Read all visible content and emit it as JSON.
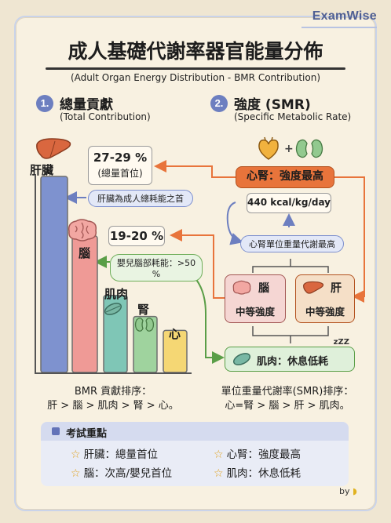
{
  "brand": "ExamWise",
  "title": "成人基礎代謝率器官能量分佈",
  "subtitle": "(Adult Organ Energy Distribution - BMR Contribution)",
  "section1": {
    "number": "1.",
    "title": "總量貢獻",
    "subtitle": "(Total Contribution)",
    "liver_callout_value": "27-29 %",
    "liver_callout_note": "(總量首位)",
    "liver_pill": "肝臟為成人總耗能之首",
    "brain_callout_value": "19-20 %",
    "brain_pill": "嬰兒腦部耗能：>50 %",
    "ranking_title": "BMR 貢獻排序：",
    "ranking": "肝 > 腦 > 肌肉 > 腎 > 心。"
  },
  "chart_data": {
    "type": "bar",
    "categories": [
      "肝臟",
      "腦",
      "肌肉",
      "腎",
      "心"
    ],
    "values": [
      28,
      19.5,
      11,
      8,
      6
    ],
    "colors": [
      "#7e92cf",
      "#ef9a96",
      "#7fc6b6",
      "#9fd39e",
      "#f5d774"
    ],
    "xlabel": "",
    "ylabel": "",
    "grid": false
  },
  "section2": {
    "number": "2.",
    "title": "強度 (SMR)",
    "subtitle": "(Specific Metabolic Rate)",
    "top_box": "心腎：強度最高",
    "rate": "440 kcal/kg/day",
    "rate_note": "心腎單位重量代謝最高",
    "brain_label": "腦",
    "brain_note": "中等強度",
    "liver_label": "肝",
    "liver_note": "中等強度",
    "muscle_box": "肌肉：休息低耗",
    "ranking_title": "單位重量代謝率(SMR)排序：",
    "ranking": "心=腎 > 腦 > 肝 > 肌肉。"
  },
  "key_points": {
    "title": "考試重點",
    "items": [
      "肝臟：總量首位",
      "心腎：強度最高",
      "腦：次高/嬰兒首位",
      "肌肉：休息低耗"
    ]
  },
  "signature": "by",
  "colors": {
    "accent": "#6d7fc0",
    "orange": "#e8743b",
    "green": "#6fae5a"
  }
}
